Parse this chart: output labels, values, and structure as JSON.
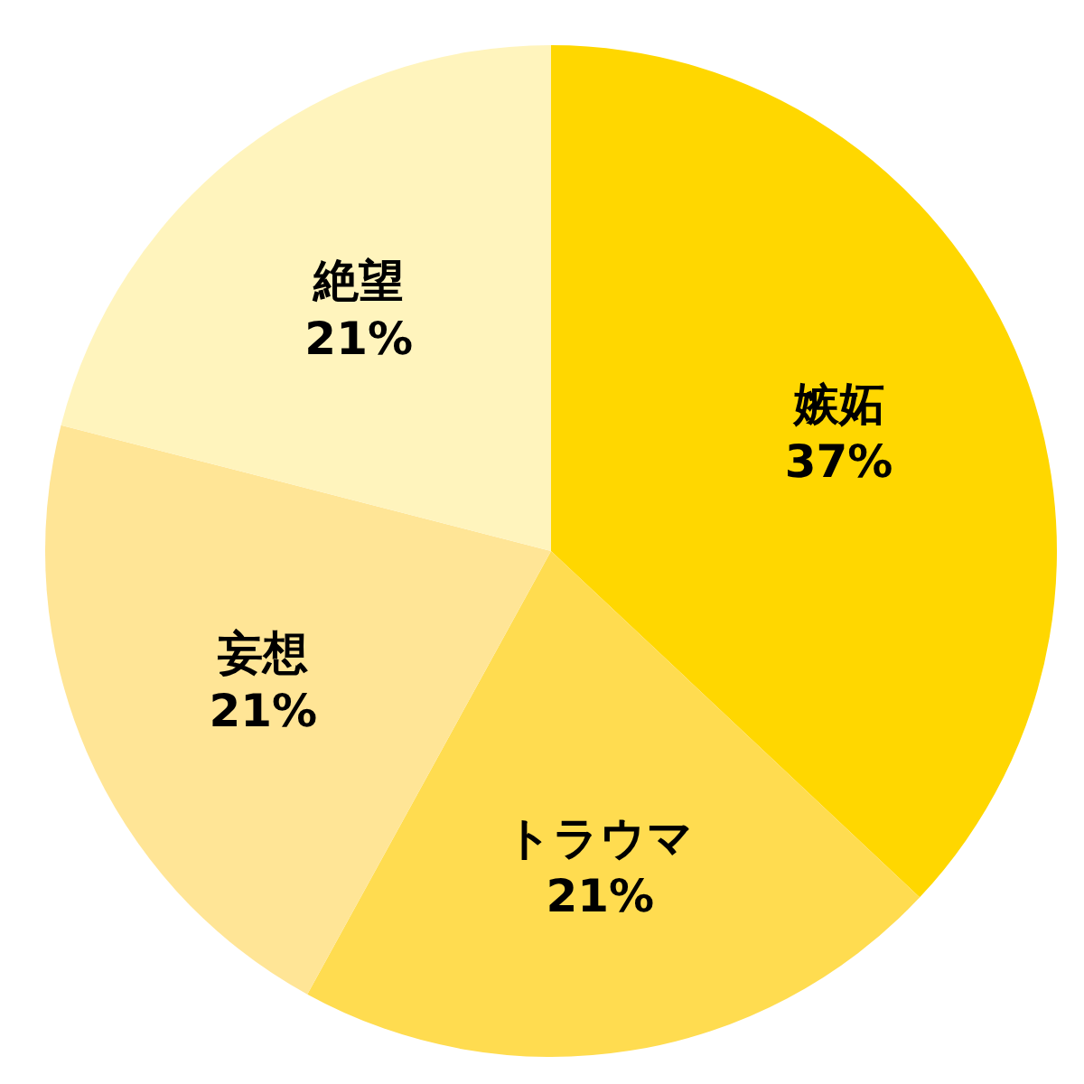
{
  "chart_data": {
    "type": "pie",
    "categories": [
      "嫉妬",
      "トラウマ",
      "妄想",
      "絶望"
    ],
    "values": [
      37,
      21,
      21,
      21
    ],
    "value_labels": [
      "37%",
      "21%",
      "21%",
      "21%"
    ],
    "colors": [
      "#ffd700",
      "#ffdc50",
      "#ffe596",
      "#fff4bd"
    ],
    "legend": false
  }
}
